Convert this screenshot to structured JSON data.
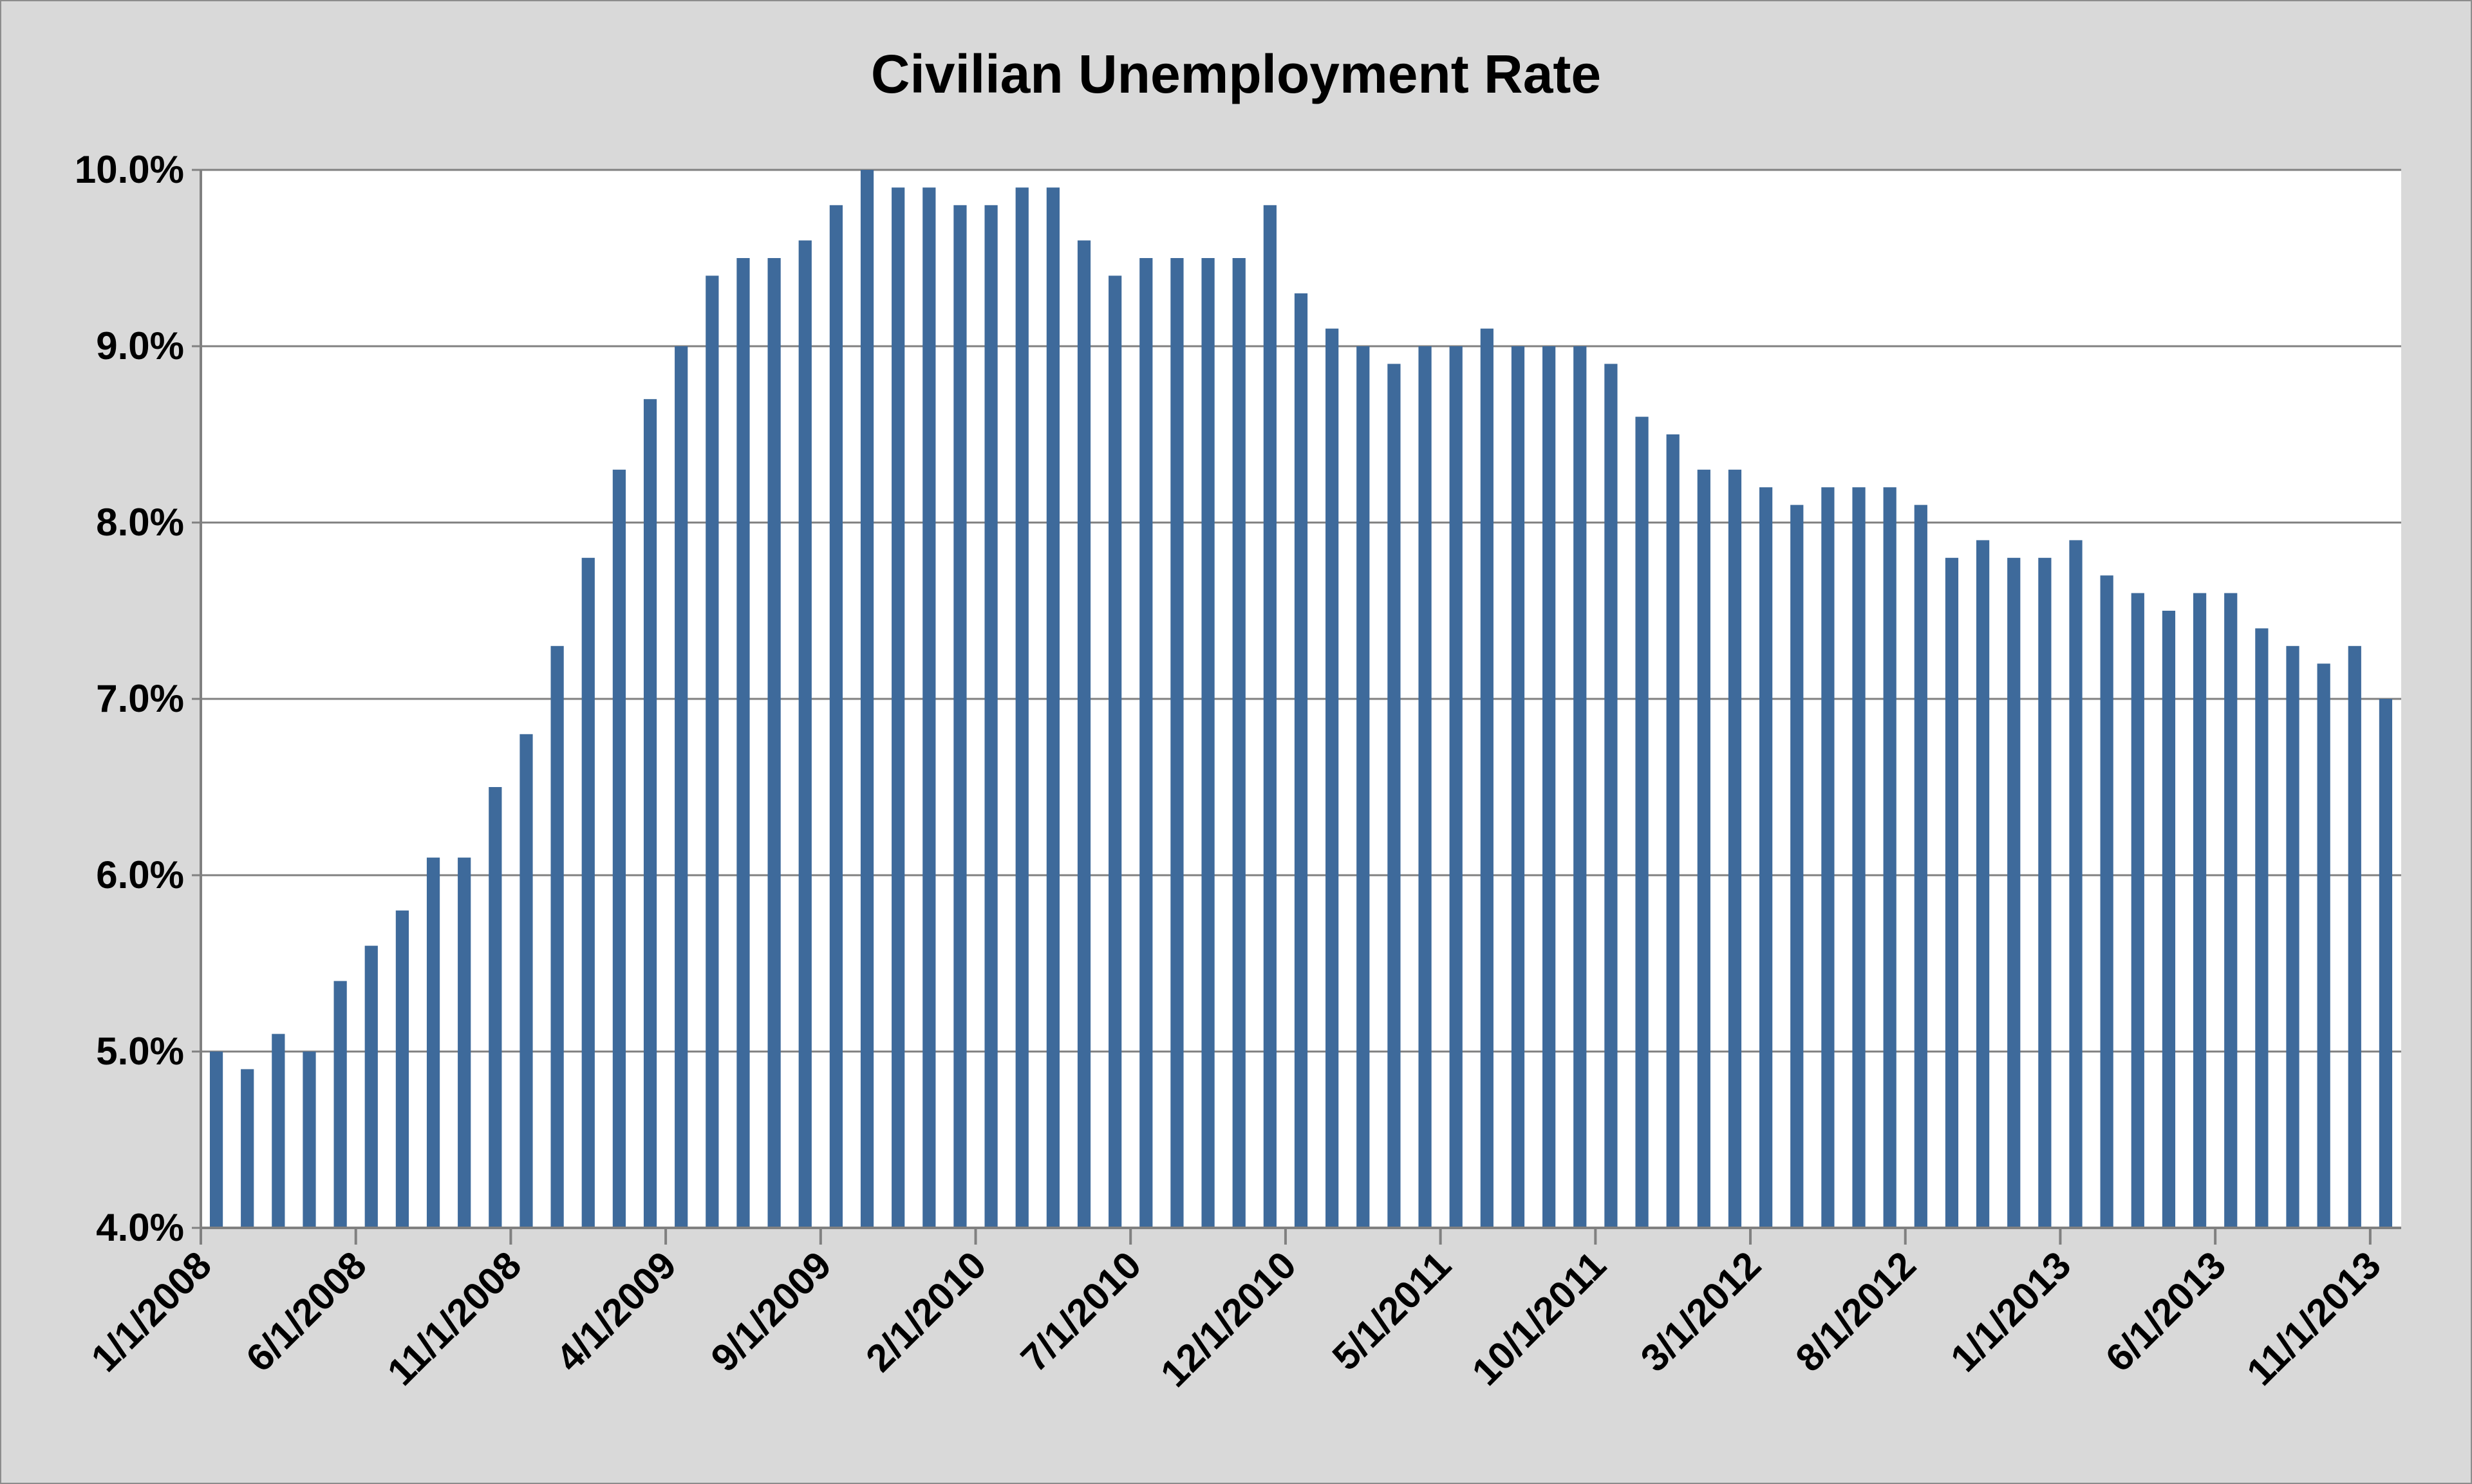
{
  "chart_data": {
    "type": "bar",
    "title": "Civilian Unemployment Rate",
    "xlabel": "",
    "ylabel": "",
    "ylim": [
      4.0,
      10.0
    ],
    "y_ticks": [
      "4.0%",
      "5.0%",
      "6.0%",
      "7.0%",
      "8.0%",
      "9.0%",
      "10.0%"
    ],
    "x_tick_labels": [
      "1/1/2008",
      "6/1/2008",
      "11/1/2008",
      "4/1/2009",
      "9/1/2009",
      "2/1/2010",
      "7/1/2010",
      "12/1/2010",
      "5/1/2011",
      "10/1/2011",
      "3/1/2012",
      "8/1/2012",
      "1/1/2013",
      "6/1/2013",
      "11/1/2013"
    ],
    "grid": true,
    "legend": "none",
    "bar_color": "#3e6a9b",
    "plot_background": "#ffffff",
    "chart_background": "#d9d9d9",
    "gridline_color": "#808080",
    "categories": [
      "1/1/2008",
      "2/1/2008",
      "3/1/2008",
      "4/1/2008",
      "5/1/2008",
      "6/1/2008",
      "7/1/2008",
      "8/1/2008",
      "9/1/2008",
      "10/1/2008",
      "11/1/2008",
      "12/1/2008",
      "1/1/2009",
      "2/1/2009",
      "3/1/2009",
      "4/1/2009",
      "5/1/2009",
      "6/1/2009",
      "7/1/2009",
      "8/1/2009",
      "9/1/2009",
      "10/1/2009",
      "11/1/2009",
      "12/1/2009",
      "1/1/2010",
      "2/1/2010",
      "3/1/2010",
      "4/1/2010",
      "5/1/2010",
      "6/1/2010",
      "7/1/2010",
      "8/1/2010",
      "9/1/2010",
      "10/1/2010",
      "11/1/2010",
      "12/1/2010",
      "1/1/2011",
      "2/1/2011",
      "3/1/2011",
      "4/1/2011",
      "5/1/2011",
      "6/1/2011",
      "7/1/2011",
      "8/1/2011",
      "9/1/2011",
      "10/1/2011",
      "11/1/2011",
      "12/1/2011",
      "1/1/2012",
      "2/1/2012",
      "3/1/2012",
      "4/1/2012",
      "5/1/2012",
      "6/1/2012",
      "7/1/2012",
      "8/1/2012",
      "9/1/2012",
      "10/1/2012",
      "11/1/2012",
      "12/1/2012",
      "1/1/2013",
      "2/1/2013",
      "3/1/2013",
      "4/1/2013",
      "5/1/2013",
      "6/1/2013",
      "7/1/2013",
      "8/1/2013",
      "9/1/2013",
      "10/1/2013",
      "11/1/2013"
    ],
    "values": [
      5.0,
      4.9,
      5.1,
      5.0,
      5.4,
      5.6,
      5.8,
      6.1,
      6.1,
      6.5,
      6.8,
      7.3,
      7.8,
      8.3,
      8.7,
      9.0,
      9.4,
      9.5,
      9.5,
      9.6,
      9.8,
      10.0,
      9.9,
      9.9,
      9.8,
      9.8,
      9.9,
      9.9,
      9.6,
      9.4,
      9.5,
      9.5,
      9.5,
      9.5,
      9.8,
      9.3,
      9.1,
      9.0,
      8.9,
      9.0,
      9.0,
      9.1,
      9.0,
      9.0,
      9.0,
      8.9,
      8.6,
      8.5,
      8.3,
      8.3,
      8.2,
      8.1,
      8.2,
      8.2,
      8.2,
      8.1,
      7.8,
      7.9,
      7.8,
      7.8,
      7.9,
      7.7,
      7.6,
      7.5,
      7.6,
      7.6,
      7.4,
      7.3,
      7.2,
      7.3,
      7.0
    ]
  }
}
